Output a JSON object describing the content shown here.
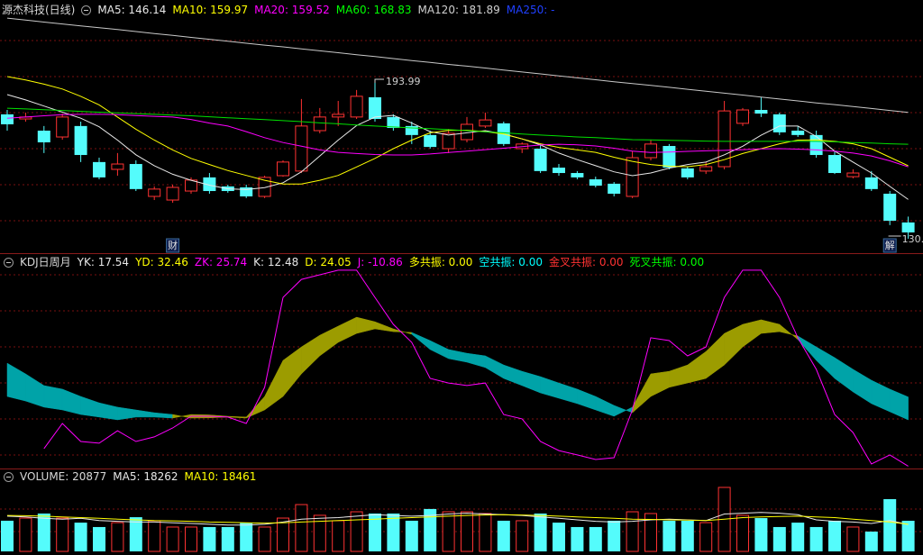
{
  "chart_data": [
    {
      "type": "candlestick",
      "title": "源杰科技(日线)",
      "legend": [
        {
          "text": "MA5: 146.14",
          "color": "#e8e8e8"
        },
        {
          "text": "MA10: 159.97",
          "color": "#ffff00"
        },
        {
          "text": "MA20: 159.52",
          "color": "#ff00ff"
        },
        {
          "text": "MA60: 168.83",
          "color": "#00ff00"
        },
        {
          "text": "MA120: 181.89",
          "color": "#d0d0d0"
        },
        {
          "text": "MA250: -",
          "color": "#2040ff"
        }
      ],
      "up_color": "#ff3232",
      "down_color": "#54fcfc",
      "open": [
        181.1,
        179.2,
        174.4,
        171.8,
        176.3,
        161.5,
        158.5,
        160.7,
        147.4,
        145.9,
        149.6,
        155.2,
        151.5,
        151.1,
        147.4,
        155.9,
        157.8,
        174.4,
        180.0,
        180.0,
        188.1,
        180.0,
        176.3,
        172.6,
        167.0,
        170.7,
        176.3,
        177.4,
        167.0,
        167.0,
        159.2,
        157.0,
        154.4,
        152.6,
        147.4,
        163.3,
        168.1,
        158.9,
        157.8,
        159.6,
        177.4,
        182.9,
        181.1,
        174.4,
        172.6,
        164.4,
        155.5,
        155.2,
        148.5,
        136.7
      ],
      "high": [
        182.9,
        181.8,
        176.3,
        181.4,
        178.1,
        163.3,
        165.2,
        162.2,
        151.5,
        152.2,
        155.2,
        157.0,
        152.2,
        152.2,
        155.9,
        162.2,
        187.4,
        183.7,
        186.6,
        191.1,
        193.99,
        181.1,
        178.1,
        174.4,
        175.1,
        180.0,
        181.8,
        178.1,
        169.6,
        168.9,
        160.7,
        157.8,
        155.5,
        153.3,
        165.9,
        170.7,
        168.9,
        159.6,
        161.5,
        186.6,
        183.7,
        188.1,
        181.8,
        176.3,
        174.4,
        165.9,
        158.5,
        157.8,
        149.6,
        139.1
      ],
      "low": [
        174.4,
        178.1,
        165.2,
        170.7,
        161.5,
        154.4,
        155.9,
        149.6,
        145.9,
        144.8,
        148.5,
        148.5,
        148.9,
        146.7,
        146.7,
        155.5,
        157.0,
        173.3,
        176.3,
        179.2,
        178.1,
        174.4,
        168.9,
        167.0,
        165.2,
        169.6,
        175.5,
        168.1,
        165.2,
        157.0,
        155.9,
        154.4,
        151.1,
        147.4,
        146.7,
        162.2,
        158.5,
        154.4,
        156.6,
        158.5,
        176.3,
        180.0,
        172.6,
        171.8,
        163.3,
        156.6,
        154.8,
        149.6,
        135.6,
        130.0
      ],
      "close": [
        177.0,
        180.0,
        169.6,
        180.0,
        164.4,
        155.2,
        160.7,
        150.4,
        150.4,
        151.1,
        154.1,
        149.6,
        149.6,
        147.4,
        155.2,
        161.5,
        176.3,
        180.0,
        181.1,
        188.5,
        179.2,
        175.5,
        172.6,
        167.7,
        173.3,
        177.0,
        178.8,
        168.9,
        168.9,
        157.8,
        157.0,
        155.2,
        151.8,
        148.5,
        163.3,
        168.9,
        159.2,
        155.2,
        159.6,
        182.5,
        182.9,
        181.4,
        173.7,
        172.6,
        164.4,
        157.0,
        157.0,
        150.4,
        137.4,
        132.6
      ],
      "series": [
        {
          "color": "#e8e8e8",
          "values": [
            189.2,
            187,
            184.5,
            182,
            179.5,
            176,
            170.5,
            164.5,
            160,
            156.5,
            154.0,
            152.0,
            150.5,
            150.2,
            151.0,
            153.0,
            157.5,
            164.0,
            170.5,
            176.5,
            180.0,
            180.7,
            177.5,
            174.0,
            172.6,
            173.5,
            174.4,
            173.0,
            171.0,
            168.5,
            165.2,
            162.5,
            160.0,
            157.5,
            155.9,
            157.0,
            159.0,
            160.5,
            161.5,
            164.5,
            168.0,
            172.5,
            176.3,
            176.3,
            172.0,
            166.0,
            161.5,
            157.0,
            151.5,
            146.14
          ]
        },
        {
          "color": "#ffff00",
          "values": [
            196.6,
            195.2,
            193.5,
            191.5,
            188.5,
            185.0,
            180.0,
            175.0,
            170.5,
            166.5,
            163.0,
            160.5,
            158.0,
            156.0,
            154.0,
            152.5,
            152.5,
            154.0,
            156.0,
            159.5,
            163.0,
            167.0,
            170.5,
            173.5,
            174.5,
            174.6,
            174.0,
            173.0,
            171.0,
            169.0,
            167.5,
            166.5,
            165.5,
            163.5,
            161.8,
            160.5,
            159.8,
            159.6,
            160.5,
            162.5,
            165.0,
            167.0,
            169.0,
            170.5,
            170.6,
            170.0,
            169.0,
            167.0,
            163.5,
            159.97
          ]
        },
        {
          "color": "#ff00ff",
          "values": [
            179.5,
            180.0,
            180.5,
            181.0,
            181.1,
            181.1,
            181.0,
            180.6,
            180.3,
            180.0,
            179,
            177.5,
            176.3,
            174,
            171.5,
            169.5,
            168.0,
            166.5,
            165.5,
            165.0,
            164.6,
            164.4,
            164.4,
            164.8,
            165.4,
            166,
            166.6,
            167.2,
            167.8,
            168.5,
            168.8,
            168.6,
            168.1,
            167.2,
            166.0,
            165.4,
            165.6,
            165.9,
            166.1,
            166.3,
            166.6,
            166.9,
            167.0,
            166.8,
            166.5,
            166.0,
            165.2,
            164.0,
            162.0,
            159.52
          ]
        },
        {
          "color": "#00e000",
          "values": [
            183.6,
            183.3,
            183.0,
            182.7,
            182.3,
            182.0,
            181.7,
            181.4,
            181.1,
            180.8,
            180.5,
            180.1,
            179.7,
            179.3,
            178.9,
            178.5,
            178.1,
            177.6,
            177.2,
            176.7,
            176.3,
            175.9,
            175.5,
            175.2,
            174.8,
            174.4,
            173.9,
            173.5,
            173.0,
            172.6,
            172.2,
            171.8,
            171.5,
            171.1,
            170.7,
            170.6,
            170.4,
            170.3,
            170.1,
            170.0,
            170.0,
            170.0,
            170.0,
            170.0,
            170.0,
            169.8,
            169.5,
            169.3,
            169.0,
            168.83
          ]
        },
        {
          "color": "#c8c8c8",
          "values": [
            220.6,
            219.8,
            219.0,
            218.2,
            217.4,
            216.7,
            215.9,
            215.1,
            214.3,
            213.5,
            212.7,
            211.9,
            211.1,
            210.3,
            209.5,
            208.8,
            208.0,
            207.2,
            206.4,
            205.6,
            204.8,
            204.0,
            203.2,
            202.4,
            201.6,
            200.9,
            200.1,
            199.3,
            198.5,
            197.7,
            196.9,
            196.1,
            195.3,
            194.5,
            193.7,
            193.0,
            192.2,
            191.4,
            190.6,
            189.8,
            189.0,
            188.2,
            187.4,
            186.6,
            185.8,
            185.1,
            184.3,
            183.5,
            182.7,
            181.89
          ]
        }
      ],
      "ylim": [
        124.45,
        226.2
      ],
      "annotations": [
        {
          "text": "193.99",
          "value": 193.99,
          "point": 20
        },
        {
          "text": "130.",
          "value": 130.0,
          "point": 49
        }
      ],
      "markers": [
        {
          "text": "财",
          "point": 9
        },
        {
          "text": "解",
          "point": 48
        }
      ]
    },
    {
      "type": "kdj",
      "title": "KDJ日周月",
      "legend": [
        {
          "text": "YK: 17.54",
          "color": "#e8e8e8"
        },
        {
          "text": "YD: 32.46",
          "color": "#ffff00"
        },
        {
          "text": "ZK: 25.74",
          "color": "#ff00ff"
        },
        {
          "text": "K: 12.48",
          "color": "#e8e8e8"
        },
        {
          "text": "D: 24.05",
          "color": "#ffff00"
        },
        {
          "text": "J: -10.86",
          "color": "#ff00ff"
        },
        {
          "text": "多共振: 0.00",
          "color": "#ffff00"
        },
        {
          "text": "空共振: 0.00",
          "color": "#00ffff"
        },
        {
          "text": "金叉共振: 0.00",
          "color": "#ff3232"
        },
        {
          "text": "死叉共振: 0.00",
          "color": "#00ff00"
        }
      ],
      "band_colors": {
        "up": "#9c9c00",
        "down": "#00a3a8"
      },
      "series": [
        {
          "values": [
            24.3,
            22.0,
            18.9,
            17.5,
            15.2,
            13.9,
            12.5,
            13.9,
            13.9,
            13.4,
            15.2,
            15.0,
            14.3,
            13.9,
            24.3,
            42.5,
            49.3,
            55.2,
            59.8,
            64.3,
            62.0,
            58.4,
            55.7,
            48.0,
            43.4,
            41.6,
            38.9,
            33.4,
            29.8,
            26.1,
            23.4,
            20.7,
            17.5,
            14.3,
            18.9,
            35.7,
            37.0,
            40.2,
            47.0,
            56.1,
            60.7,
            63.0,
            60.7,
            53.0,
            42.5,
            33.4,
            26.6,
            20.7,
            16.6,
            12.48
          ]
        },
        {
          "values": [
            41.1,
            35.7,
            29.8,
            28.0,
            24.3,
            21.1,
            18.9,
            17.5,
            16.1,
            15.2,
            13.4,
            13.5,
            13.9,
            13.4,
            17.5,
            24.3,
            35.7,
            44.8,
            51.6,
            56.1,
            58.4,
            57.0,
            56.6,
            52.5,
            48.0,
            46.1,
            44.8,
            40.2,
            37.0,
            34.3,
            31.1,
            28.0,
            24.3,
            19.8,
            16.1,
            24.3,
            28.9,
            31.1,
            33.4,
            40.2,
            49.3,
            56.1,
            57.0,
            54.8,
            49.3,
            43.9,
            38.0,
            32.5,
            28.0,
            24.05
          ]
        },
        {
          "color": "#ff00ff",
          "values": [
            null,
            null,
            -2.0,
            10.7,
            1.6,
            0.7,
            7.0,
            1.6,
            3.9,
            8.4,
            14.3,
            14.3,
            13.9,
            10.7,
            28.9,
            74.3,
            83.4,
            85.7,
            88.0,
            88.0,
            74.3,
            60.7,
            51.6,
            33.4,
            31.1,
            29.8,
            31.1,
            15.2,
            13.0,
            1.6,
            -3.0,
            -5.2,
            -7.5,
            -6.6,
            17.5,
            53.9,
            52.5,
            44.8,
            49.3,
            74.3,
            88.0,
            88.0,
            74.3,
            53.9,
            38.0,
            15.2,
            6.1,
            -9.8,
            -5.2,
            -10.86
          ]
        }
      ],
      "ylim": [
        -11.6,
        95.7
      ]
    },
    {
      "type": "volume",
      "title": "VOLUME: 20877",
      "legend": [
        {
          "text": "MA5: 18262",
          "color": "#e8e8e8"
        },
        {
          "text": "MA10: 18461",
          "color": "#ffff00"
        }
      ],
      "values": [
        20900,
        22700,
        25800,
        22700,
        19600,
        16600,
        19600,
        23300,
        20900,
        16600,
        16600,
        16600,
        16600,
        19600,
        16600,
        22700,
        31900,
        24600,
        20900,
        27000,
        25800,
        25800,
        20900,
        28900,
        27000,
        27000,
        25800,
        20900,
        20900,
        25800,
        19600,
        16600,
        16600,
        20900,
        27000,
        25800,
        20900,
        20900,
        19600,
        43600,
        24600,
        22700,
        16600,
        19600,
        16600,
        20900,
        16600,
        13500,
        35600,
        20877
      ],
      "series": [
        {
          "color": "#e8e8e8",
          "values": [
            24000,
            23500,
            22500,
            22000,
            22500,
            21000,
            20500,
            20000,
            20000,
            19500,
            19000,
            18500,
            18000,
            18000,
            18500,
            20000,
            22000,
            22500,
            23000,
            24000,
            25000,
            24500,
            24000,
            24500,
            25500,
            26000,
            25500,
            25000,
            24500,
            23500,
            22500,
            21500,
            20500,
            20000,
            20500,
            21500,
            22000,
            21500,
            21000,
            25500,
            26000,
            26500,
            26000,
            25000,
            21500,
            20500,
            20000,
            19000,
            21000,
            18262
          ]
        },
        {
          "color": "#ffff00",
          "values": [
            24500,
            24300,
            24000,
            23500,
            23000,
            22500,
            22000,
            21500,
            21000,
            20800,
            20500,
            20000,
            19800,
            19500,
            19300,
            19500,
            20000,
            20500,
            21000,
            21500,
            22000,
            22500,
            23000,
            23500,
            24000,
            24500,
            24800,
            25000,
            24800,
            24500,
            24000,
            23500,
            23000,
            22500,
            22000,
            21800,
            21500,
            21300,
            21000,
            22000,
            23000,
            23500,
            23800,
            24000,
            23500,
            23000,
            22000,
            21000,
            20000,
            18461
          ]
        }
      ],
      "ylim": [
        0,
        44200
      ]
    }
  ]
}
